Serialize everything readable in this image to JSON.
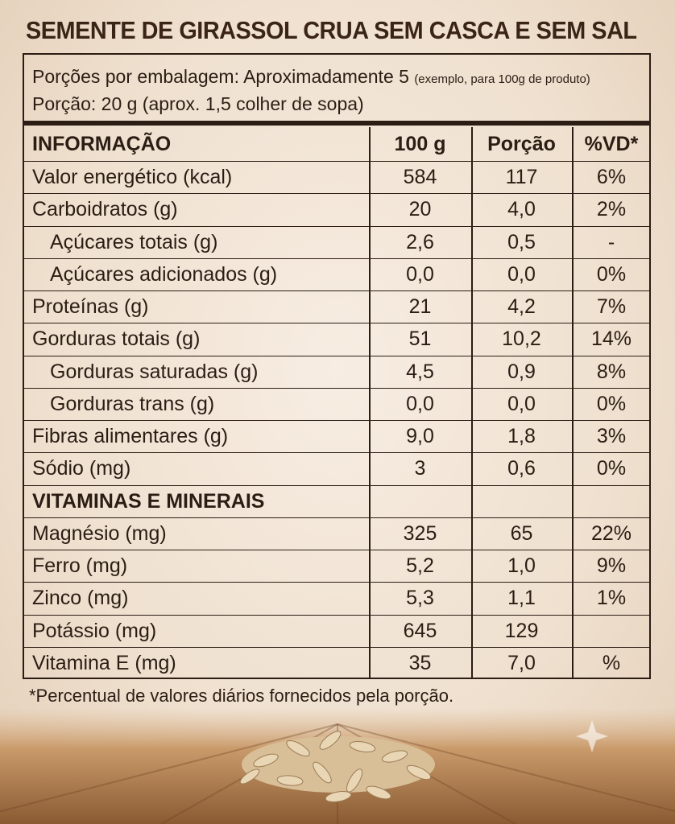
{
  "title": "SEMENTE DE GIRASSOL CRUA SEM CASCA E SEM SAL",
  "serving": {
    "servings_per_package": "Porções por embalagem: Aproximadamente 5",
    "note": "(exemplo, para 100g de produto)",
    "portion": "Porção: 20 g (aprox. 1,5 colher de sopa)"
  },
  "table": {
    "header": [
      "INFORMAÇÃO",
      "100 g",
      "Porção",
      "%VD*"
    ],
    "rows": [
      {
        "cells": [
          "Valor energético (kcal)",
          "584",
          "117",
          "6%"
        ]
      },
      {
        "cells": [
          "Carboidratos (g)",
          "20",
          "4,0",
          "2%"
        ]
      },
      {
        "cells": [
          "Açúcares totais (g)",
          "2,6",
          "0,5",
          "-"
        ],
        "indent": true
      },
      {
        "cells": [
          "Açúcares adicionados (g)",
          "0,0",
          "0,0",
          "0%"
        ],
        "indent": true
      },
      {
        "cells": [
          "Proteínas (g)",
          "21",
          "4,2",
          "7%"
        ]
      },
      {
        "cells": [
          "Gorduras totais (g)",
          "51",
          "10,2",
          "14%"
        ]
      },
      {
        "cells": [
          "Gorduras saturadas (g)",
          "4,5",
          "0,9",
          "8%"
        ],
        "indent": true
      },
      {
        "cells": [
          "Gorduras trans (g)",
          "0,0",
          "0,0",
          "0%"
        ],
        "indent": true
      },
      {
        "cells": [
          "Fibras alimentares (g)",
          "9,0",
          "1,8",
          "3%"
        ]
      },
      {
        "cells": [
          "Sódio (mg)",
          "3",
          "0,6",
          "0%"
        ]
      },
      {
        "cells": [
          "VITAMINAS E MINERAIS",
          null,
          null,
          null
        ],
        "section": true
      },
      {
        "cells": [
          "Magnésio (mg)",
          "325",
          "65",
          "22%"
        ]
      },
      {
        "cells": [
          "Ferro (mg)",
          "5,2",
          "1,0",
          "9%"
        ]
      },
      {
        "cells": [
          "Zinco (mg)",
          "5,3",
          "1,1",
          "1%"
        ]
      },
      {
        "cells": [
          "Potássio (mg)",
          "645",
          "129",
          null
        ]
      },
      {
        "cells": [
          "Vitamina E (mg)",
          "35",
          "7,0",
          "%"
        ]
      }
    ]
  },
  "footnote": "*Percentual de valores diários fornecidos pela porção."
}
